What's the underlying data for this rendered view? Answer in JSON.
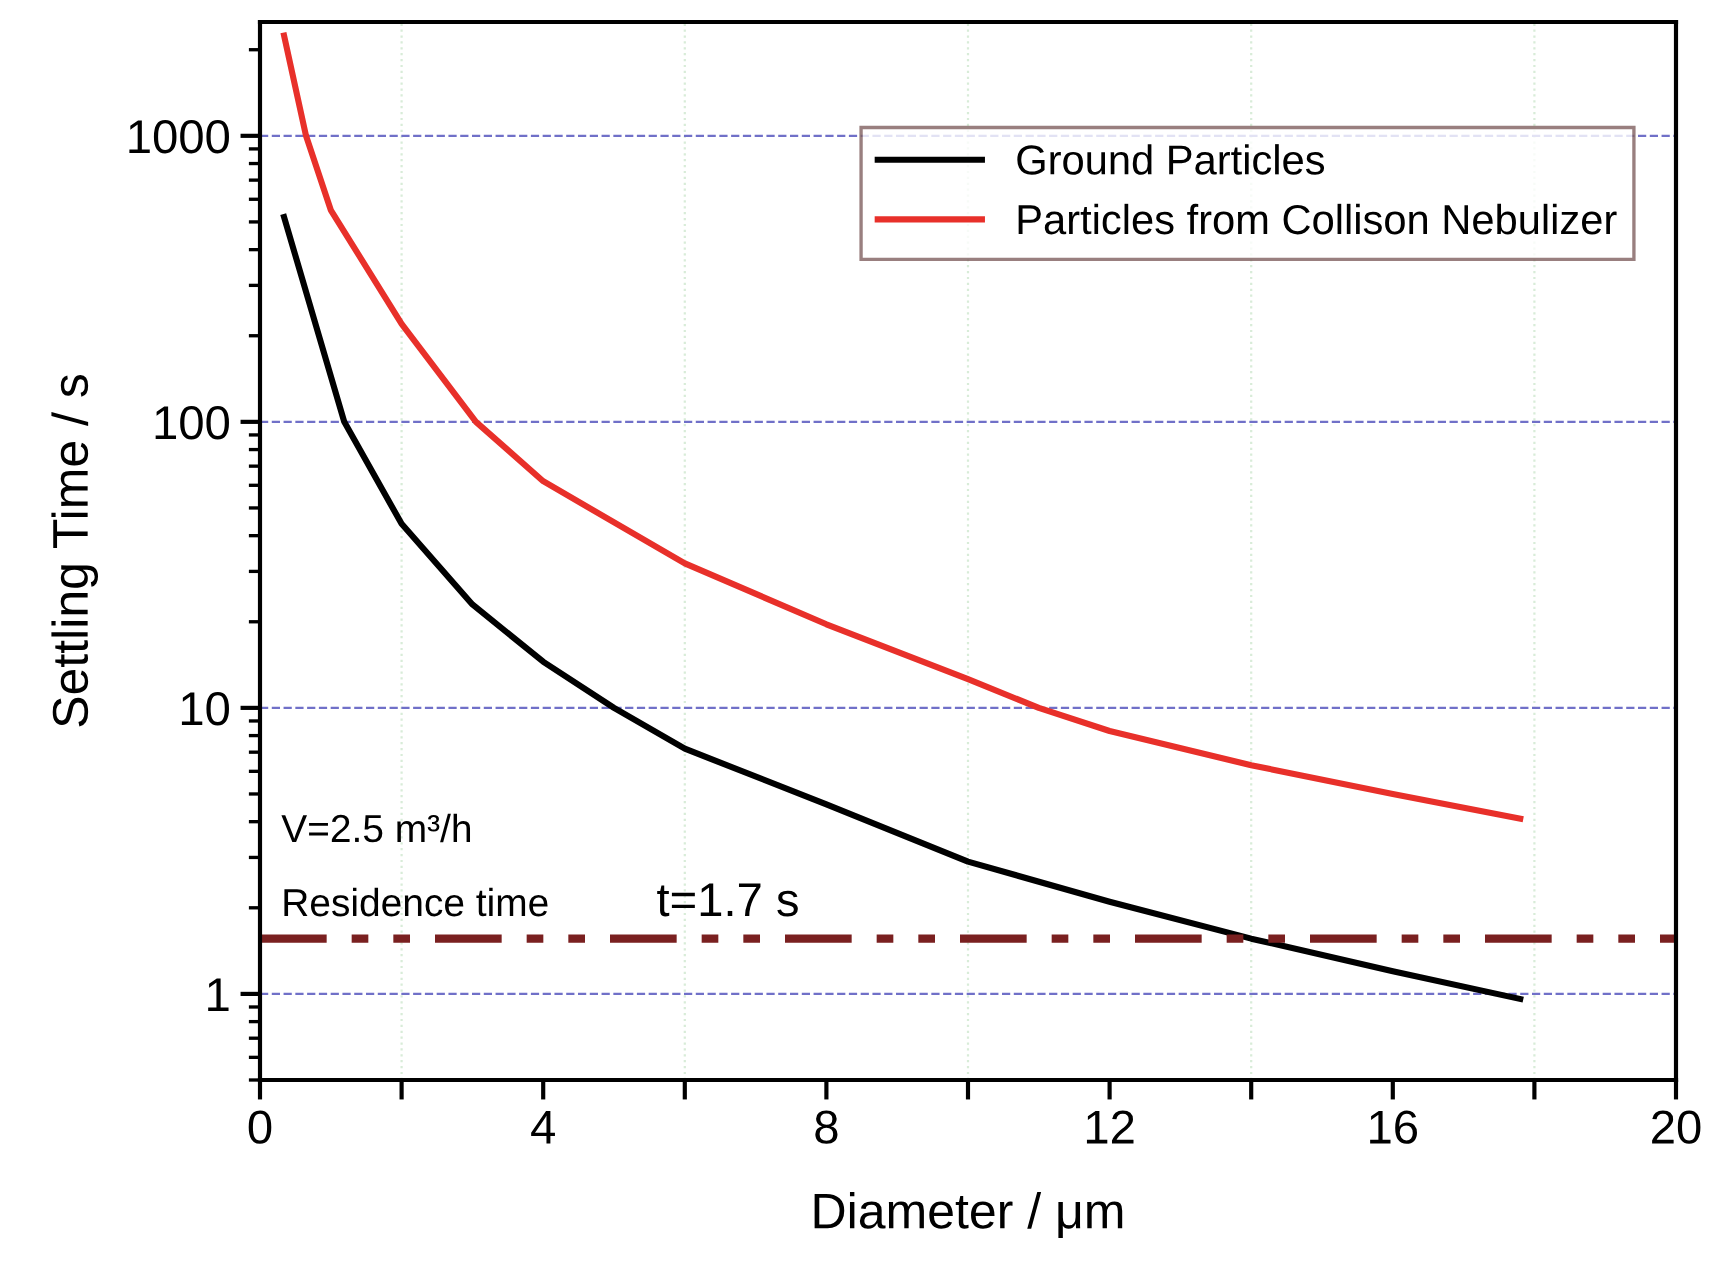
{
  "chart_data": {
    "type": "line",
    "xlabel": "Diameter / μm",
    "ylabel": "Settling Time / s",
    "log": "y",
    "xlim": [
      0,
      20
    ],
    "ylim": [
      0.5,
      2500
    ],
    "xticks": [
      0,
      {
        "value": 2,
        "label": null
      },
      4,
      {
        "value": 6,
        "label": null
      },
      8,
      {
        "value": 10,
        "label": null
      },
      12,
      {
        "value": 14,
        "label": null
      },
      16,
      {
        "value": 18,
        "label": null
      },
      20
    ],
    "yticks": [
      1,
      10,
      100,
      1000
    ],
    "grid": true,
    "legend": "top right",
    "marker": "none",
    "line_style": "solid",
    "series": [
      {
        "name": "Ground Particles",
        "color": "#000000",
        "x": [
          0.34,
          1.19,
          2,
          3,
          4,
          5,
          6,
          8,
          10,
          12,
          14,
          16,
          17.8
        ],
        "values": [
          520,
          100,
          44,
          23,
          14.5,
          10,
          7.2,
          4.6,
          2.9,
          2.1,
          1.56,
          1.2,
          0.96
        ]
      },
      {
        "name": "Particles from Collison Nebulizer",
        "color": "#e8302a",
        "x": [
          0.34,
          0.65,
          1,
          2,
          3.05,
          4,
          6,
          8,
          10,
          11,
          12,
          14,
          16,
          17.8
        ],
        "values": [
          2240,
          1000,
          550,
          220,
          100,
          62,
          32,
          19.6,
          12.6,
          10,
          8.3,
          6.3,
          5.0,
          4.1
        ]
      }
    ],
    "ref_lines": [
      {
        "axis": "y",
        "value": 1.56,
        "color": "#7a2020"
      }
    ],
    "annotations": [
      "V=2.5 m³/h",
      "Residence time",
      "t=1.7 s"
    ]
  }
}
